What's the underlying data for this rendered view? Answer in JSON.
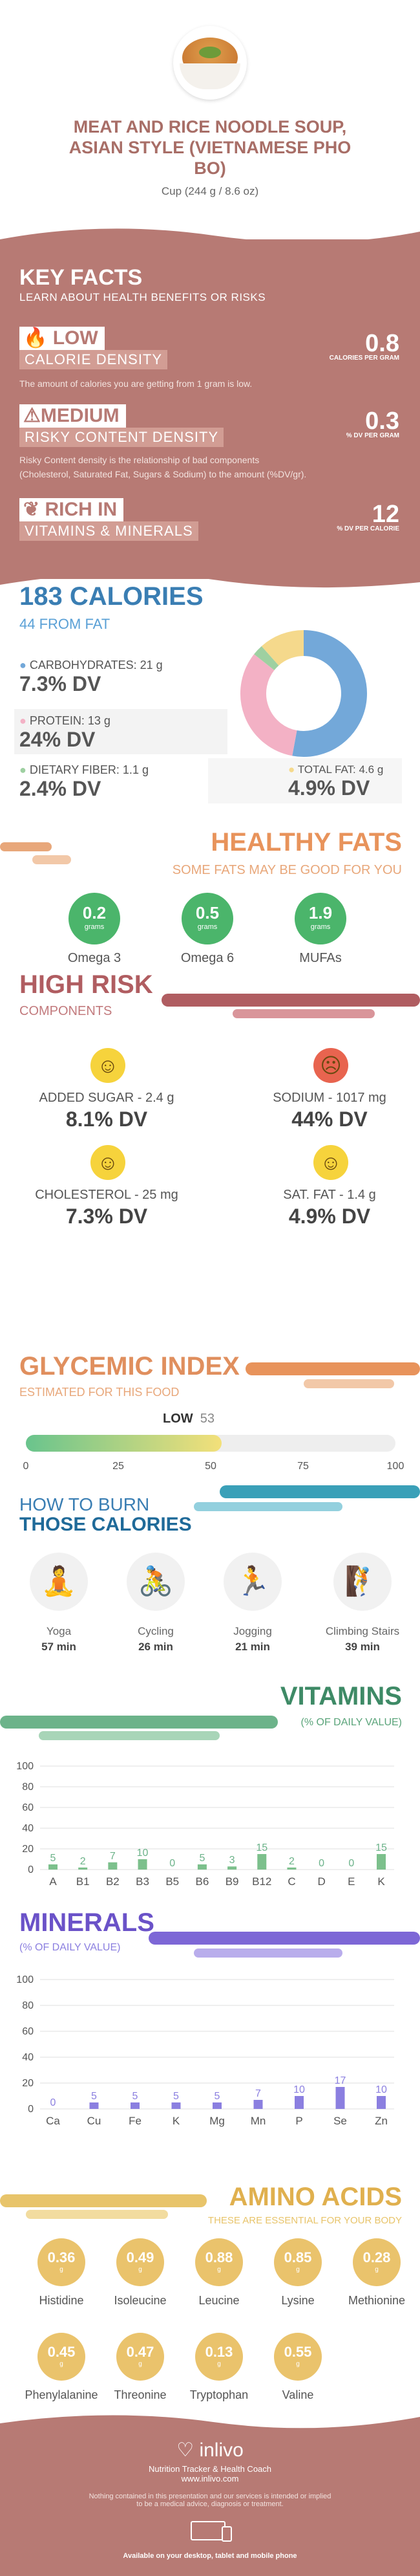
{
  "header": {
    "title_line1": "MEAT AND RICE NOODLE SOUP,",
    "title_line2": "ASIAN STYLE (VIETNAMESE PHO",
    "title_line3": "BO)",
    "serving": "Cup (244 g / 8.6 oz)"
  },
  "key_facts": {
    "title": "KEY FACTS",
    "subtitle": "LEARN ABOUT HEALTH BENEFITS OR RISKS",
    "calorie": {
      "level": "LOW",
      "label": "CALORIE DENSITY",
      "value": "0.8",
      "unit": "CALORIES PER GRAM",
      "note": "The amount of calories you are getting from 1 gram is low."
    },
    "risky": {
      "level": "MEDIUM",
      "label": "RISKY CONTENT DENSITY",
      "value": "0.3",
      "unit": "% DV PER GRAM",
      "note1": "Risky Content density is the relationship of bad components",
      "note2": "(Cholesterol, Saturated Fat, Sugars & Sodium) to the amount (%DV/gr)."
    },
    "rich": {
      "level": "RICH IN",
      "label": "VITAMINS & MINERALS",
      "value": "12",
      "unit": "% DV PER CALORIE"
    }
  },
  "calories": {
    "title": "183 CALORIES",
    "from_fat": "44 FROM FAT",
    "carbs_label": "CARBOHYDRATES: 21 g",
    "carbs_dv": "7.3% DV",
    "protein_label": "PROTEIN: 13 g",
    "protein_dv": "24% DV",
    "fiber_label": "DIETARY FIBER: 1.1 g",
    "fiber_dv": "2.4% DV",
    "fat_label": "TOTAL FAT: 4.6 g",
    "fat_dv": "4.9% DV",
    "donut": [
      {
        "name": "Carbohydrates",
        "value": 21,
        "color": "#73a8d9"
      },
      {
        "name": "Protein",
        "value": 13,
        "color": "#f3b1c5"
      },
      {
        "name": "Dietary Fiber",
        "value": 1.1,
        "color": "#9ed0a1"
      },
      {
        "name": "Total Fat",
        "value": 4.6,
        "color": "#f5d98c"
      }
    ]
  },
  "healthy_fats": {
    "title": "HEALTHY FATS",
    "subtitle": "SOME FATS MAY BE GOOD FOR YOU",
    "items": [
      {
        "value": "0.2",
        "unit": "grams",
        "name": "Omega 3"
      },
      {
        "value": "0.5",
        "unit": "grams",
        "name": "Omega 6"
      },
      {
        "value": "1.9",
        "unit": "grams",
        "name": "MUFAs"
      }
    ]
  },
  "high_risk": {
    "title": "HIGH RISK",
    "subtitle": "COMPONENTS",
    "items": [
      {
        "label": "ADDED SUGAR - 2.4 g",
        "dv": "8.1% DV",
        "face": "☺",
        "color": "#f6d33c"
      },
      {
        "label": "SODIUM - 1017 mg",
        "dv": "44% DV",
        "face": "☹",
        "color": "#e8644f"
      },
      {
        "label": "CHOLESTEROL - 25 mg",
        "dv": "7.3% DV",
        "face": "☺",
        "color": "#f6d33c"
      },
      {
        "label": "SAT. FAT - 1.4 g",
        "dv": "4.9% DV",
        "face": "☺",
        "color": "#f6d33c"
      }
    ]
  },
  "glycemic": {
    "title": "GLYCEMIC INDEX",
    "subtitle": "ESTIMATED FOR THIS FOOD",
    "level": "LOW",
    "value": "53",
    "fill": 0.53,
    "ticks": [
      "0",
      "25",
      "50",
      "75",
      "100"
    ]
  },
  "burn": {
    "title1": "HOW TO BURN",
    "title2": "THOSE CALORIES",
    "items": [
      {
        "name": "Yoga",
        "time": "57 min"
      },
      {
        "name": "Cycling",
        "time": "26 min"
      },
      {
        "name": "Jogging",
        "time": "21 min"
      },
      {
        "name": "Climbing Stairs",
        "time": "39 min"
      }
    ]
  },
  "vitamins": {
    "title": "VITAMINS",
    "subtitle": "(% OF DAILY VALUE)",
    "y_ticks": [
      "100",
      "80",
      "60",
      "40",
      "20",
      "0"
    ],
    "chart_data": {
      "type": "bar",
      "categories": [
        "A",
        "B1",
        "B2",
        "B3",
        "B5",
        "B6",
        "B9",
        "B12",
        "C",
        "D",
        "E",
        "K"
      ],
      "values": [
        5,
        2,
        7,
        10,
        0,
        5,
        3,
        15,
        2,
        0,
        0,
        15
      ],
      "ylim": [
        0,
        100
      ],
      "color": "#7cc08c"
    }
  },
  "minerals": {
    "title": "MINERALS",
    "subtitle": "(% OF DAILY VALUE)",
    "y_ticks": [
      "100",
      "80",
      "60",
      "40",
      "20",
      "0"
    ],
    "chart_data": {
      "type": "bar",
      "categories": [
        "Ca",
        "Cu",
        "Fe",
        "K",
        "Mg",
        "Mn",
        "P",
        "Se",
        "Zn"
      ],
      "values": [
        0,
        5,
        5,
        5,
        5,
        7,
        10,
        17,
        10
      ],
      "ylim": [
        0,
        100
      ],
      "color": "#8b7fe0"
    }
  },
  "amino": {
    "title": "AMINO ACIDS",
    "subtitle": "THESE ARE ESSENTIAL FOR YOUR BODY",
    "unit": "g",
    "items": [
      {
        "value": "0.36",
        "name": "Histidine"
      },
      {
        "value": "0.49",
        "name": "Isoleucine"
      },
      {
        "value": "0.88",
        "name": "Leucine"
      },
      {
        "value": "0.85",
        "name": "Lysine"
      },
      {
        "value": "0.28",
        "name": "Methionine"
      },
      {
        "value": "0.45",
        "name": "Phenylalanine"
      },
      {
        "value": "0.47",
        "name": "Threonine"
      },
      {
        "value": "0.13",
        "name": "Tryptophan"
      },
      {
        "value": "0.55",
        "name": "Valine"
      }
    ]
  },
  "footer": {
    "brand": "inlivo",
    "tagline": "Nutrition Tracker & Health Coach",
    "url": "www.inlivo.com",
    "disclaimer1": "Nothing contained in this presentation and our services is intended or implied",
    "disclaimer2": "to be a medical advice, diagnosis or treatment.",
    "available": "Available on your desktop, tablet and mobile phone"
  }
}
